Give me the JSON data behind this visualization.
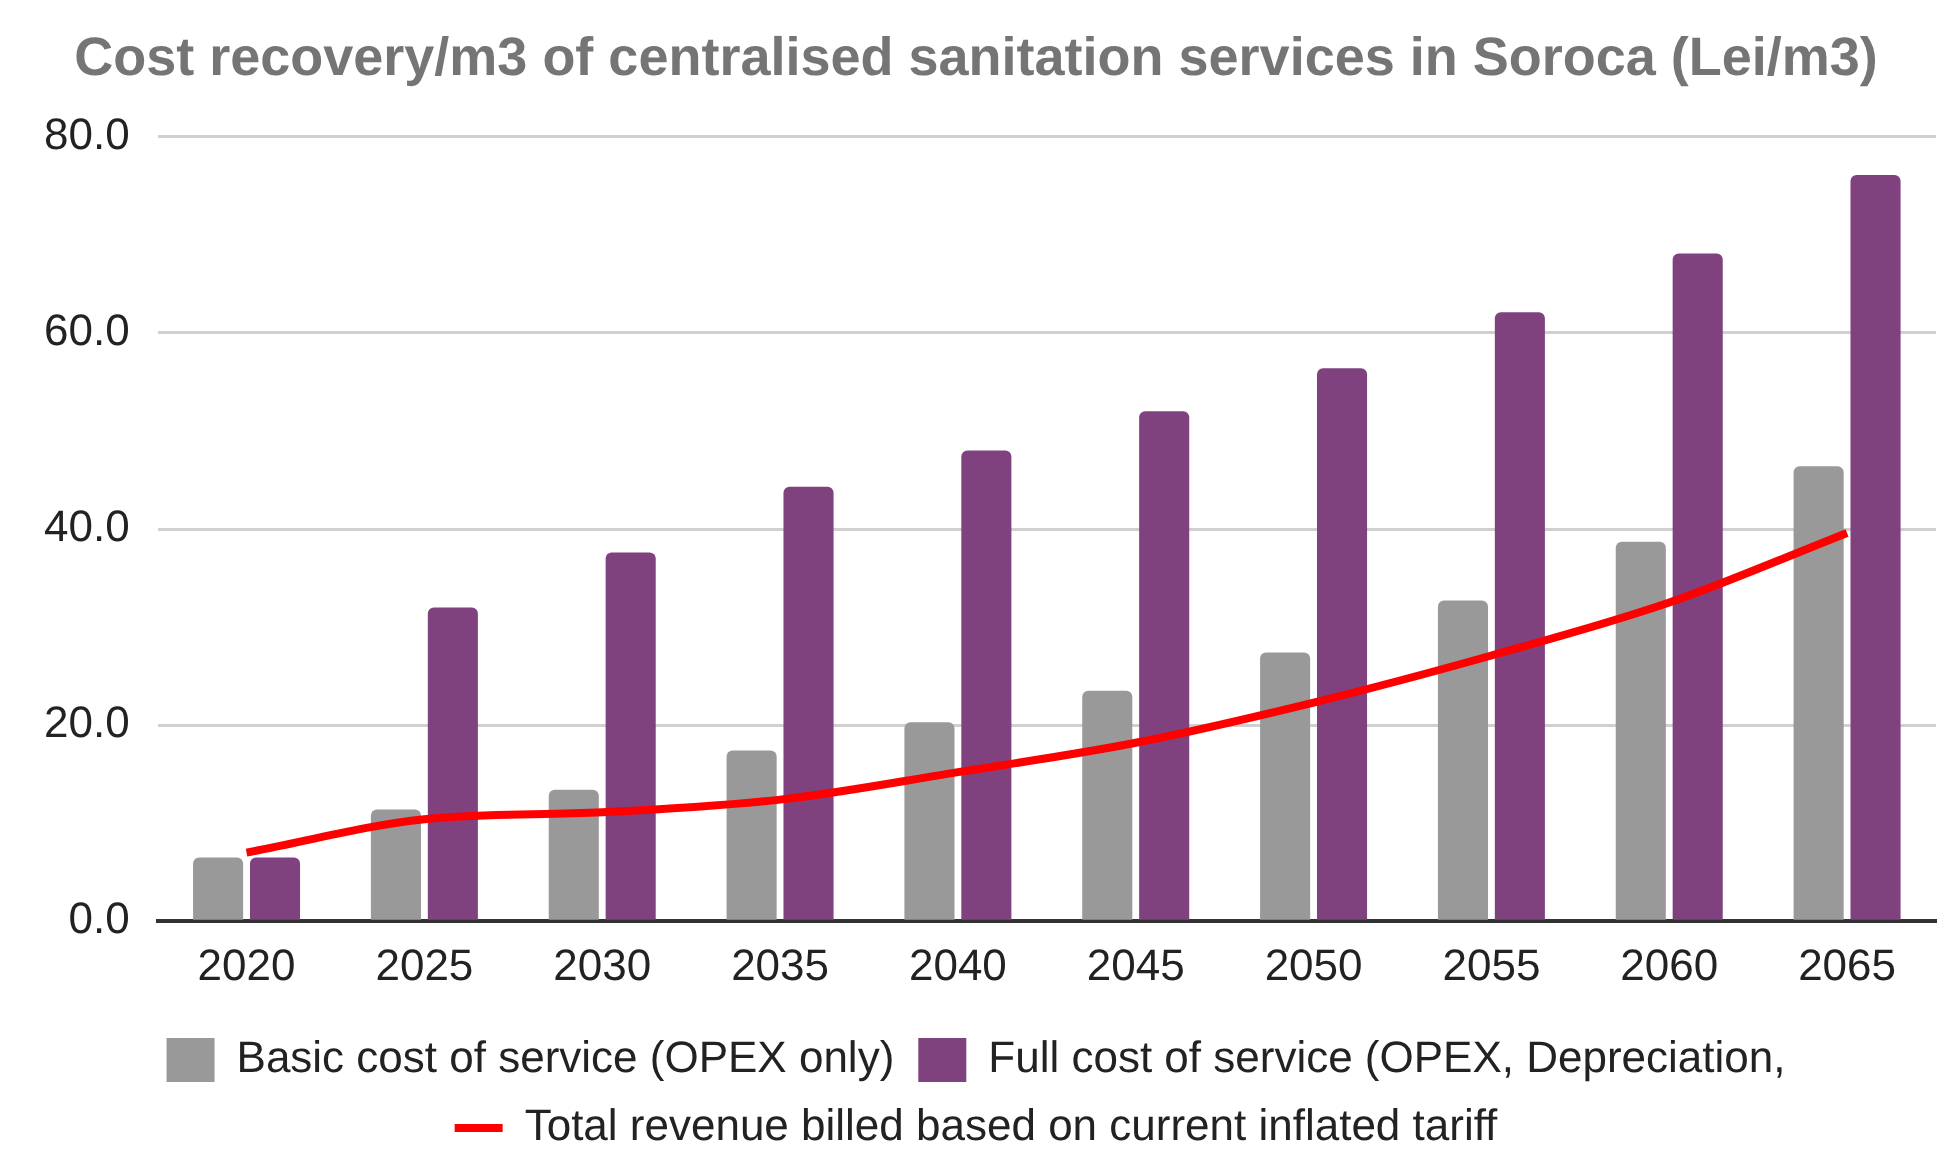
{
  "chart_data": {
    "type": "bar",
    "title": "Cost recovery/m3 of centralised sanitation services in Soroca (Lei/m3)",
    "categories": [
      "2020",
      "2025",
      "2030",
      "2035",
      "2040",
      "2045",
      "2050",
      "2055",
      "2060",
      "2065"
    ],
    "series": [
      {
        "name": "Basic cost of service (OPEX only)",
        "color": "#999999",
        "values": [
          6.5,
          11.4,
          13.4,
          17.4,
          20.3,
          23.5,
          27.4,
          32.7,
          38.7,
          46.4
        ]
      },
      {
        "name": "Full cost of service (OPEX, Depreciation,",
        "color": "#7f427f",
        "values": [
          6.5,
          32.0,
          37.6,
          44.3,
          48.0,
          52.0,
          56.4,
          62.1,
          68.1,
          76.1
        ]
      },
      {
        "name": "Total revenue billed based on current inflated tariff",
        "type": "line",
        "color": "#ff0000",
        "values": [
          7.0,
          10.4,
          11.1,
          12.4,
          15.2,
          18.2,
          22.3,
          27.1,
          32.5,
          39.6
        ]
      }
    ],
    "ylim": [
      0,
      80
    ],
    "yticks": [
      {
        "value": 0,
        "label": "0.0"
      },
      {
        "value": 20,
        "label": "20.0"
      },
      {
        "value": 40,
        "label": "40.0"
      },
      {
        "value": 60,
        "label": "60.0"
      },
      {
        "value": 80,
        "label": "80.0"
      }
    ],
    "grid": "y",
    "legend": "bottom",
    "marker": "none"
  }
}
